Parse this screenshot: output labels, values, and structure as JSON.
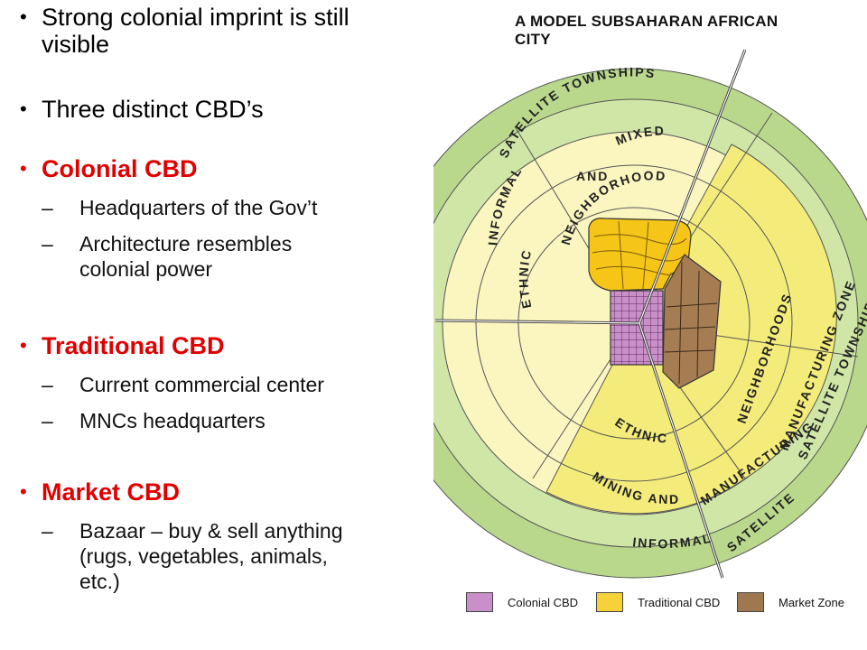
{
  "bullets": {
    "b1": "Strong colonial imprint is still\nvisible",
    "b2": "Three distinct CBD’s",
    "colonial": {
      "heading": "Colonial CBD",
      "items": [
        "Headquarters of the Gov’t",
        "Architecture resembles\ncolonial power"
      ]
    },
    "traditional": {
      "heading": "Traditional CBD",
      "items": [
        "Current commercial center",
        "MNCs headquarters"
      ]
    },
    "market": {
      "heading": "Market CBD",
      "items": [
        "Bazaar – buy & sell anything\n(rugs, vegetables, animals,\netc.)"
      ]
    },
    "bullet_glyph": "•",
    "dash_glyph": "–"
  },
  "diagram": {
    "title": "A MODEL SUBSAHARAN AFRICAN CITY",
    "rings": {
      "informal_top_left": "INFORMAL",
      "satellite_top": "SATELLITE",
      "townships_top": "TOWNSHIPS",
      "mixed": "MIXED",
      "and_top": "AND",
      "neighborhoods_top": "NEIGHBORHOODS",
      "ethnic_left": "ETHNIC",
      "neighborhoods_right": "NEIGHBORHOODS",
      "manufacturing_zone": "MANUFACTURING ZONE",
      "satellite_right": "SATELLITE",
      "townships_right": "TOWNSHIPS",
      "ethnic_bottom": "ETHNIC",
      "mining_and": "MINING  AND",
      "manufacturing_bottom": "MANUFACTURING",
      "informal_bottom": "INFORMAL",
      "satellite_bottom": "SATELLITE"
    },
    "legend": [
      {
        "label": "Colonial CBD",
        "color": "#c98fc9"
      },
      {
        "label": "Traditional CBD",
        "color": "#f5d23a"
      },
      {
        "label": "Market Zone",
        "color": "#a07850"
      }
    ],
    "colors": {
      "outer_ring": "#b9d88c",
      "mid_ring": "#cfe6a6",
      "pale_yellow": "#fbf6c0",
      "yellow": "#f4ec7a",
      "cbd_yellow": "#f5c518",
      "market_brown": "#a67c52",
      "colonial_purple": "#c98fc9"
    }
  }
}
